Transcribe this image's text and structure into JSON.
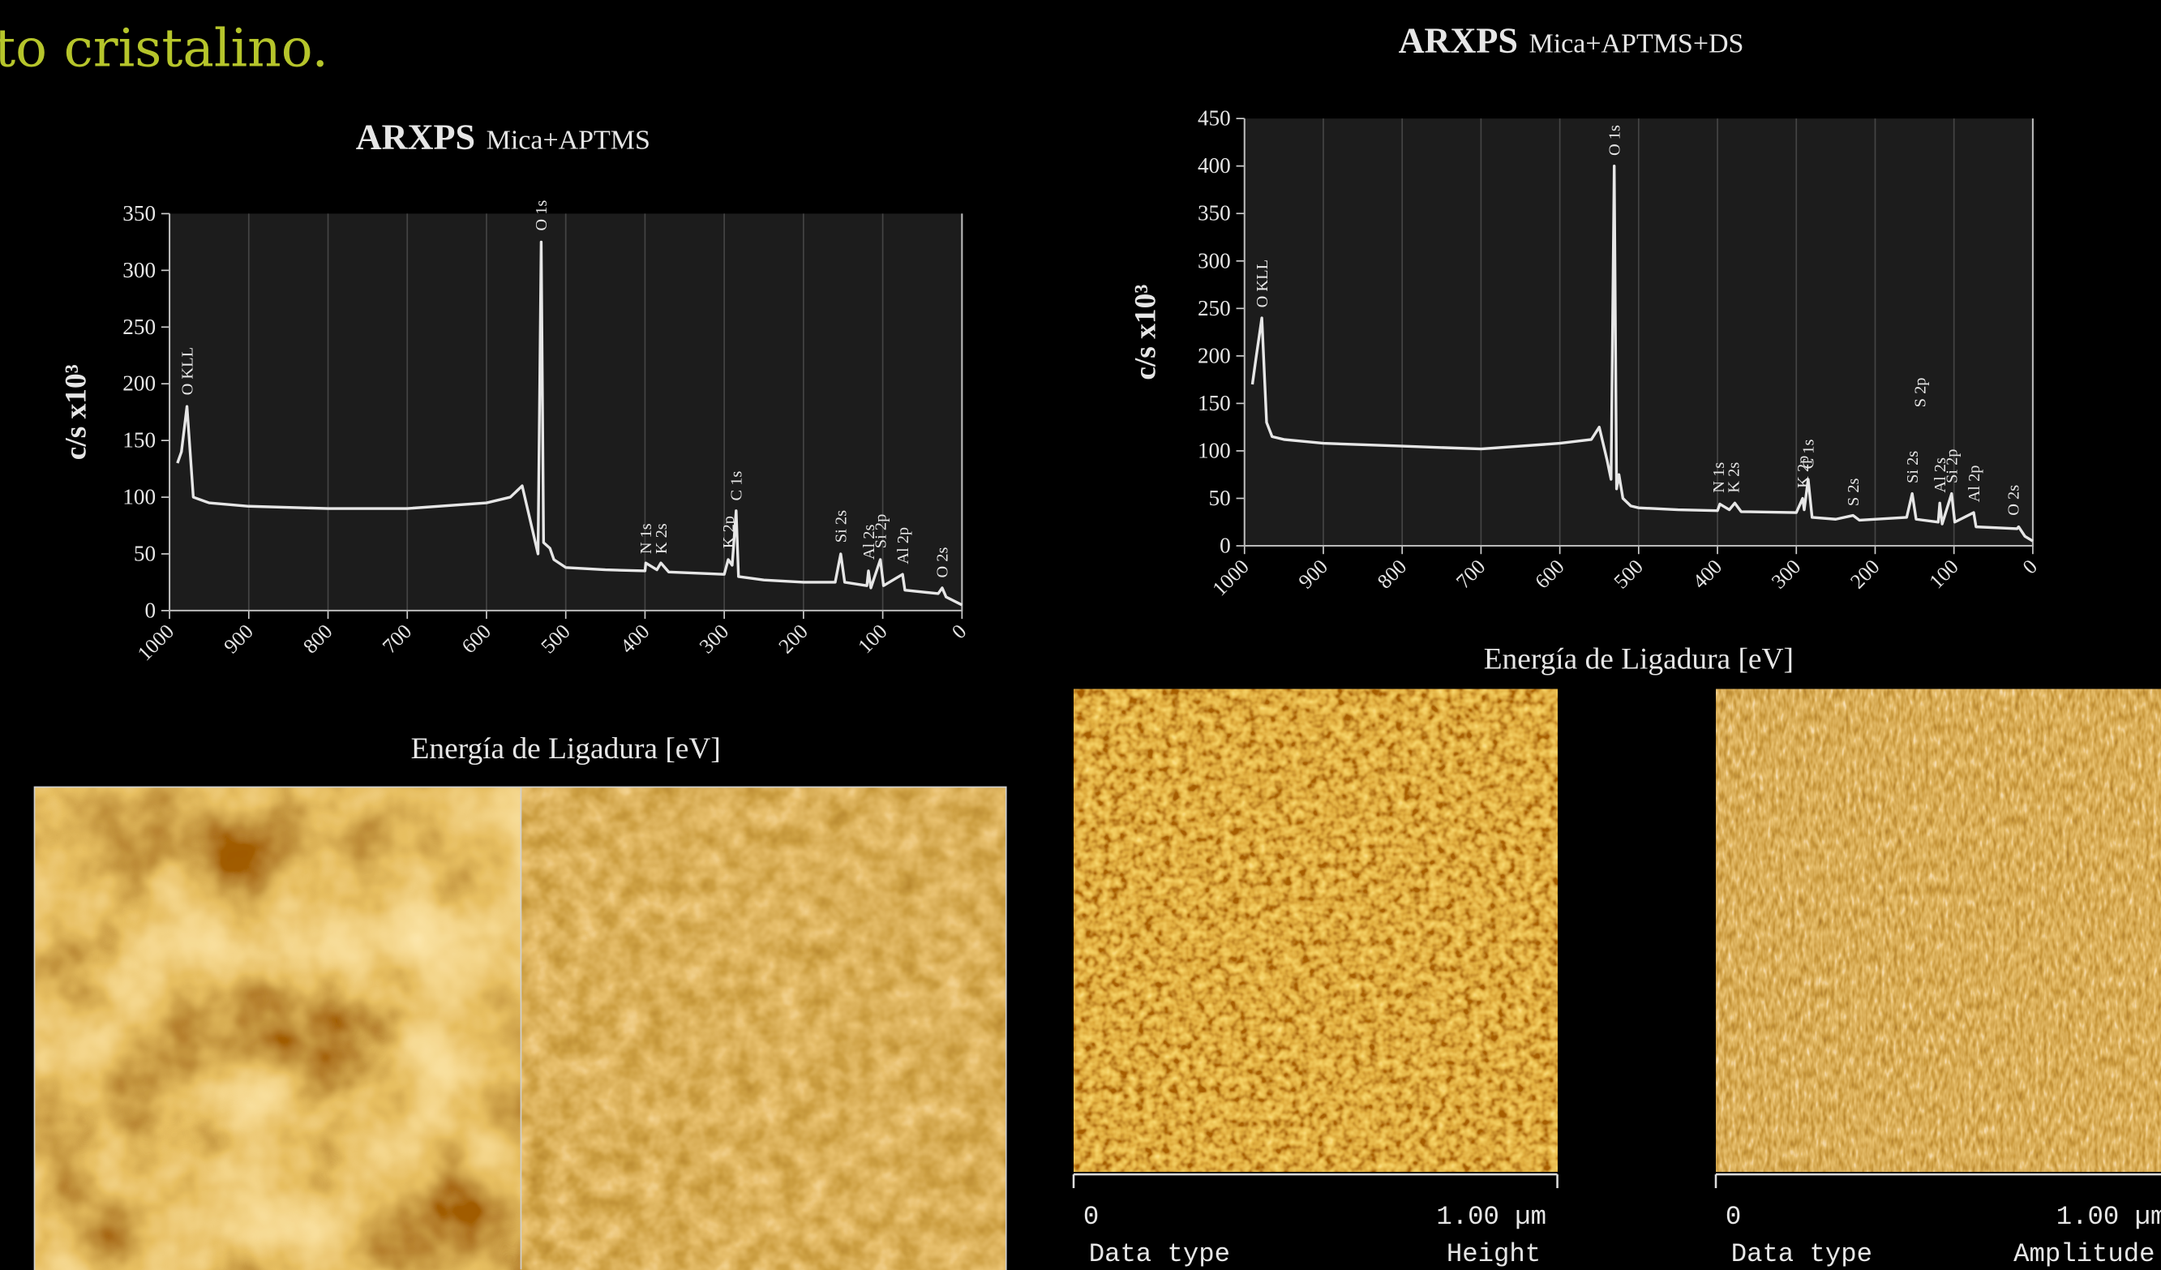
{
  "heading": "to cristalino.",
  "chart_data": [
    {
      "type": "line",
      "title": "ARXPS",
      "subtitle": "Mica+APTMS",
      "x_label": "Energía de Ligadura [eV]",
      "y_label": "c/s   x10³",
      "x": [
        990,
        985,
        978,
        970,
        950,
        900,
        800,
        700,
        600,
        570,
        555,
        545,
        535,
        531,
        528,
        520,
        515,
        500,
        450,
        400,
        399,
        385,
        380,
        370,
        300,
        295,
        290,
        285,
        282,
        250,
        200,
        160,
        153,
        148,
        120,
        118,
        115,
        103,
        99,
        75,
        72,
        30,
        25,
        20,
        0
      ],
      "series": [
        {
          "color": "#e6e6e6",
          "values": [
            130,
            140,
            180,
            100,
            95,
            92,
            90,
            90,
            95,
            100,
            110,
            80,
            50,
            325,
            60,
            55,
            45,
            38,
            36,
            35,
            42,
            36,
            42,
            34,
            32,
            45,
            40,
            88,
            30,
            27,
            25,
            25,
            50,
            25,
            22,
            35,
            20,
            45,
            22,
            32,
            18,
            15,
            20,
            12,
            5
          ]
        }
      ],
      "xlim": [
        1000,
        0
      ],
      "ylim": [
        0,
        350
      ],
      "xticks": [
        1000,
        900,
        800,
        700,
        600,
        500,
        400,
        300,
        200,
        100,
        0
      ],
      "yticks": [
        0,
        50,
        100,
        150,
        200,
        250,
        300,
        350
      ],
      "grid": true,
      "annotations": [
        {
          "text": "O KLL",
          "x": 978,
          "y": 185
        },
        {
          "text": "O 1s",
          "x": 531,
          "y": 330
        },
        {
          "text": "N 1s",
          "x": 399,
          "y": 45
        },
        {
          "text": "K 2s",
          "x": 380,
          "y": 45
        },
        {
          "text": "K 2p",
          "x": 295,
          "y": 50
        },
        {
          "text": "C 1s",
          "x": 285,
          "y": 92
        },
        {
          "text": "Si 2s",
          "x": 153,
          "y": 55
        },
        {
          "text": "Al 2s",
          "x": 118,
          "y": 40
        },
        {
          "text": "Si 2p",
          "x": 103,
          "y": 50
        },
        {
          "text": "Al 2p",
          "x": 75,
          "y": 36
        },
        {
          "text": "O 2s",
          "x": 25,
          "y": 24
        }
      ]
    },
    {
      "type": "line",
      "title": "ARXPS",
      "subtitle": "Mica+APTMS+DS",
      "x_label": "Energía de Ligadura [eV]",
      "y_label": "c/s   x10³",
      "x": [
        990,
        985,
        978,
        972,
        965,
        950,
        900,
        800,
        700,
        600,
        560,
        550,
        540,
        535,
        531,
        528,
        525,
        520,
        510,
        500,
        450,
        400,
        397,
        385,
        378,
        370,
        300,
        292,
        290,
        285,
        280,
        250,
        228,
        220,
        160,
        153,
        148,
        120,
        118,
        115,
        103,
        99,
        75,
        72,
        20,
        18,
        10,
        0
      ],
      "series": [
        {
          "color": "#e6e6e6",
          "values": [
            170,
            200,
            240,
            130,
            115,
            112,
            108,
            105,
            102,
            108,
            112,
            125,
            90,
            70,
            400,
            60,
            75,
            50,
            42,
            40,
            38,
            37,
            44,
            38,
            45,
            36,
            35,
            50,
            38,
            70,
            30,
            28,
            32,
            27,
            30,
            55,
            28,
            25,
            45,
            23,
            55,
            25,
            35,
            20,
            18,
            20,
            10,
            5
          ]
        }
      ],
      "xlim": [
        1000,
        0
      ],
      "ylim": [
        0,
        450
      ],
      "xticks": [
        1000,
        900,
        800,
        700,
        600,
        500,
        400,
        300,
        200,
        100,
        0
      ],
      "yticks": [
        0,
        50,
        100,
        150,
        200,
        250,
        300,
        350,
        400,
        450
      ],
      "grid": true,
      "annotations": [
        {
          "text": "O KLL",
          "x": 978,
          "y": 245
        },
        {
          "text": "O 1s",
          "x": 531,
          "y": 405
        },
        {
          "text": "N 1s",
          "x": 399,
          "y": 50
        },
        {
          "text": "K 2s",
          "x": 380,
          "y": 50
        },
        {
          "text": "K 2p",
          "x": 292,
          "y": 55
        },
        {
          "text": "C 1s",
          "x": 285,
          "y": 75
        },
        {
          "text": "S 2s",
          "x": 228,
          "y": 36
        },
        {
          "text": "Si 2s",
          "x": 153,
          "y": 60
        },
        {
          "text": "S 2p",
          "x": 143,
          "y": 140
        },
        {
          "text": "Al 2s",
          "x": 118,
          "y": 50
        },
        {
          "text": "Si 2p",
          "x": 103,
          "y": 60
        },
        {
          "text": "Al 2p",
          "x": 75,
          "y": 40
        },
        {
          "text": "O 2s",
          "x": 25,
          "y": 26
        }
      ]
    }
  ],
  "afm_images": [
    {
      "scale_start": "0",
      "scale_end": "1.00 µm",
      "data_type_label": "Data type",
      "data_type": "Height"
    },
    {
      "scale_start": "0",
      "scale_end": "1.00 µm",
      "data_type_label": "Data type",
      "data_type": "Amplitude"
    }
  ]
}
